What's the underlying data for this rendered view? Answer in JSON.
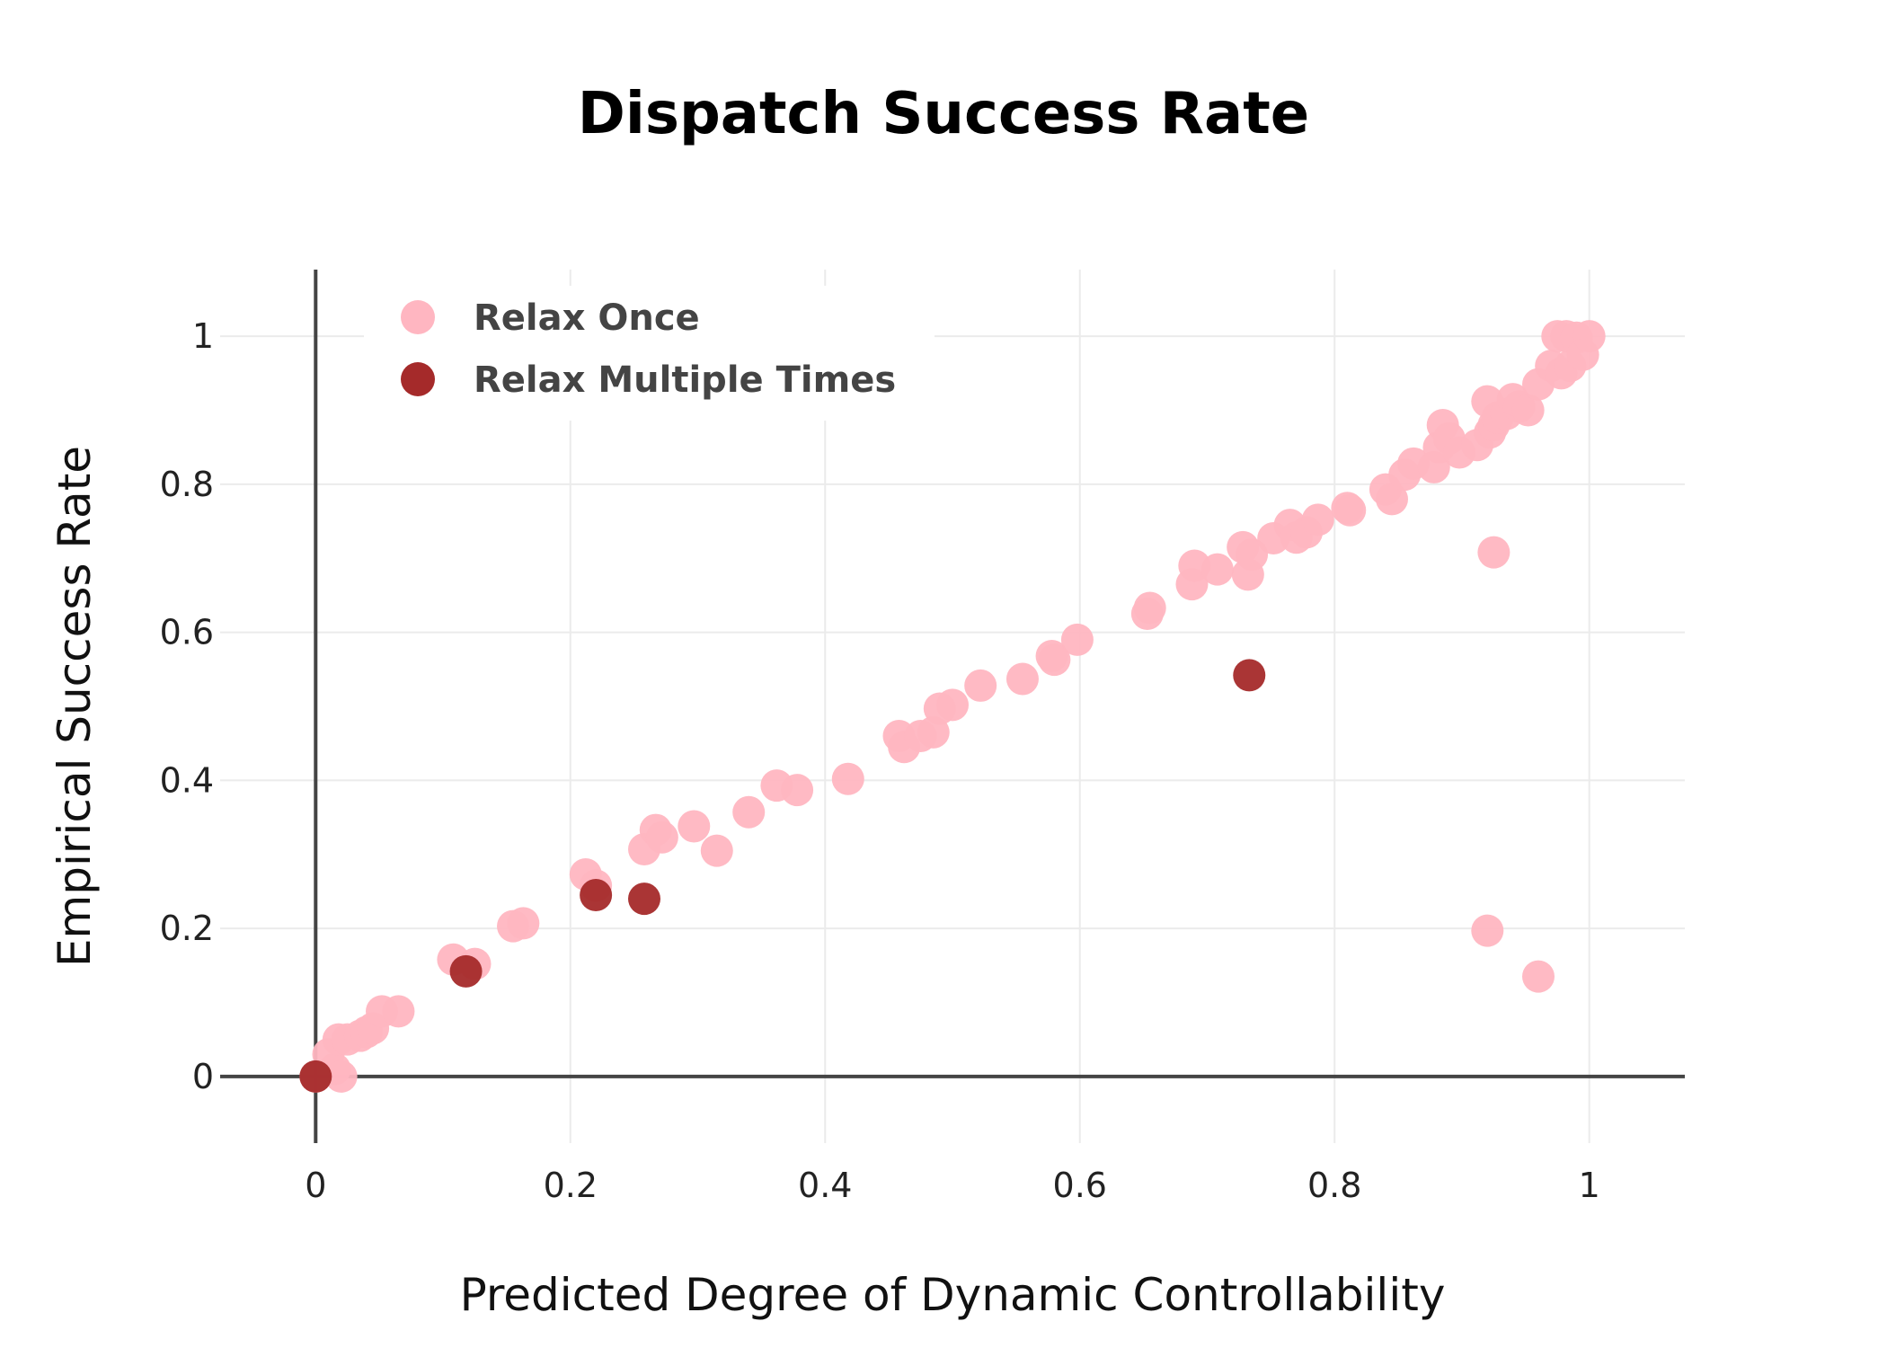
{
  "chart_data": {
    "type": "scatter",
    "title": "Dispatch Success Rate",
    "xlabel": "Predicted Degree of Dynamic Controllability",
    "ylabel": "Empirical Success Rate",
    "xlim": [
      -0.075,
      1.075
    ],
    "ylim": [
      -0.09,
      1.09
    ],
    "x_ticks": [
      0,
      0.2,
      0.4,
      0.6,
      0.8,
      1
    ],
    "x_tick_labels": [
      "0",
      "0.2",
      "0.4",
      "0.6",
      "0.8",
      "1"
    ],
    "y_ticks": [
      0,
      0.2,
      0.4,
      0.6,
      0.8,
      1
    ],
    "y_tick_labels": [
      "0",
      "0.2",
      "0.4",
      "0.6",
      "0.8",
      "1"
    ],
    "grid": true,
    "legend": "top-left",
    "series": [
      {
        "name": "Relax Once",
        "color": "#ffb6c1",
        "x": [
          0.0,
          0.01,
          0.015,
          0.02,
          0.018,
          0.025,
          0.035,
          0.04,
          0.045,
          0.052,
          0.065,
          0.108,
          0.125,
          0.155,
          0.163,
          0.212,
          0.22,
          0.258,
          0.267,
          0.272,
          0.297,
          0.315,
          0.34,
          0.362,
          0.378,
          0.418,
          0.458,
          0.462,
          0.475,
          0.485,
          0.49,
          0.5,
          0.522,
          0.555,
          0.578,
          0.58,
          0.598,
          0.653,
          0.655,
          0.688,
          0.69,
          0.708,
          0.728,
          0.732,
          0.735,
          0.752,
          0.765,
          0.77,
          0.778,
          0.787,
          0.81,
          0.812,
          0.84,
          0.845,
          0.855,
          0.862,
          0.878,
          0.882,
          0.885,
          0.89,
          0.898,
          0.912,
          0.92,
          0.922,
          0.925,
          0.928,
          0.935,
          0.94,
          0.945,
          0.952,
          0.96,
          0.97,
          0.975,
          0.978,
          0.982,
          0.985,
          0.99,
          0.995,
          1.0,
          0.92,
          0.96,
          0.925
        ],
        "y": [
          0.0,
          0.03,
          0.01,
          0.0,
          0.05,
          0.05,
          0.055,
          0.06,
          0.065,
          0.088,
          0.088,
          0.158,
          0.152,
          0.203,
          0.207,
          0.273,
          0.258,
          0.307,
          0.333,
          0.323,
          0.338,
          0.305,
          0.357,
          0.393,
          0.387,
          0.402,
          0.46,
          0.445,
          0.46,
          0.465,
          0.497,
          0.502,
          0.528,
          0.537,
          0.568,
          0.563,
          0.59,
          0.625,
          0.633,
          0.665,
          0.69,
          0.685,
          0.715,
          0.678,
          0.705,
          0.727,
          0.745,
          0.728,
          0.735,
          0.752,
          0.768,
          0.765,
          0.793,
          0.78,
          0.813,
          0.828,
          0.823,
          0.85,
          0.88,
          0.862,
          0.843,
          0.853,
          0.912,
          0.87,
          0.88,
          0.89,
          0.895,
          0.915,
          0.905,
          0.9,
          0.935,
          0.96,
          1.0,
          0.95,
          1.0,
          0.96,
          0.998,
          0.975,
          1.0,
          0.197,
          0.135,
          0.708
        ]
      },
      {
        "name": "Relax Multiple Times",
        "color": "#a52a2a",
        "x": [
          0.0,
          0.118,
          0.22,
          0.258,
          0.733
        ],
        "y": [
          0.0,
          0.142,
          0.245,
          0.24,
          0.542
        ]
      }
    ]
  }
}
